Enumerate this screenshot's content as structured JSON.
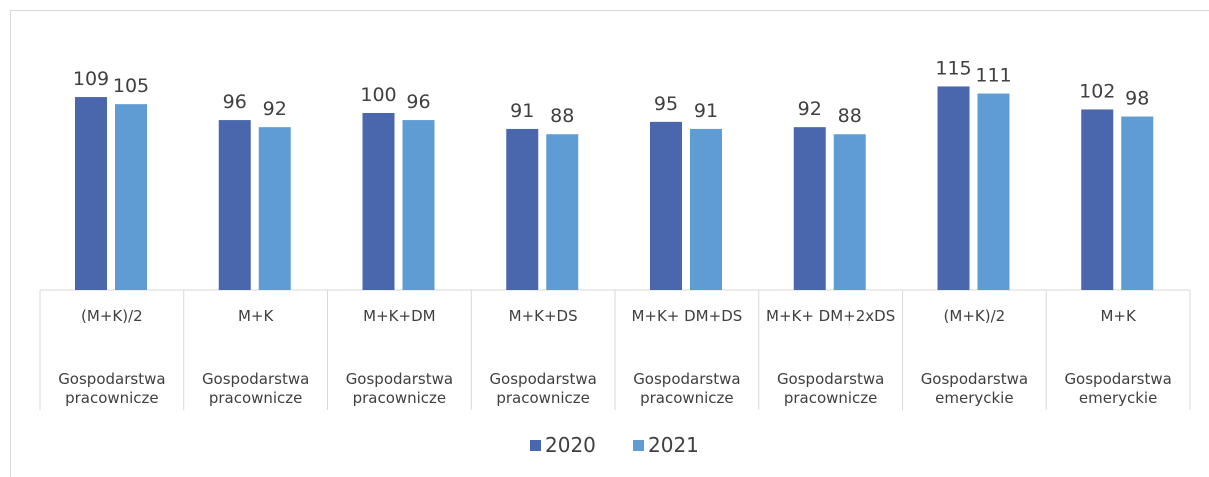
{
  "chart_data": {
    "type": "bar",
    "categories": [
      "(M+K)/2",
      "M+K",
      "M+K+DM",
      "M+K+DS",
      "M+K+ DM+DS",
      "M+K+ DM+2xDS",
      "(M+K)/2",
      "M+K"
    ],
    "groups": [
      "Gospodarstwa pracownicze",
      "Gospodarstwa pracownicze",
      "Gospodarstwa pracownicze",
      "Gospodarstwa pracownicze",
      "Gospodarstwa pracownicze",
      "Gospodarstwa pracownicze",
      "Gospodarstwa emeryckie",
      "Gospodarstwa emeryckie"
    ],
    "series": [
      {
        "name": "2020",
        "color": "#4a66ac",
        "values": [
          109,
          96,
          100,
          91,
          95,
          92,
          115,
          102
        ]
      },
      {
        "name": "2021",
        "color": "#5e9cd3",
        "values": [
          105,
          92,
          96,
          88,
          91,
          88,
          111,
          98
        ]
      }
    ],
    "legend": "bottom"
  }
}
